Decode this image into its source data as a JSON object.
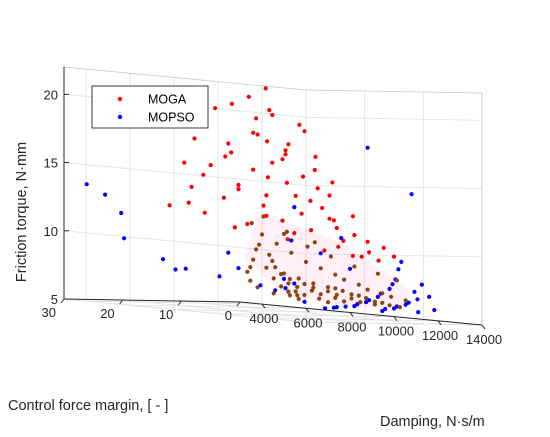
{
  "chart_data": {
    "type": "scatter",
    "projection": "3d",
    "xlabel": "Damping, N·s/m",
    "ylabel": "Control force margin, [ - ]",
    "zlabel": "Friction torque, N·mm",
    "xlim": [
      3000,
      14000
    ],
    "ylim": [
      0,
      30
    ],
    "zlim": [
      5,
      22
    ],
    "x_ticks": [
      "4000",
      "6000",
      "8000",
      "10000",
      "12000",
      "14000"
    ],
    "y_ticks": [
      "0",
      "10",
      "20",
      "30"
    ],
    "z_ticks": [
      "5",
      "10",
      "15",
      "20"
    ],
    "grid": true,
    "legend_position": "top-left",
    "overlap_color": "#8b4513",
    "series": [
      {
        "name": "MOGA",
        "color": "#ff0000",
        "points": [
          [
            9500,
            20,
            21.5
          ],
          [
            9000,
            21,
            20.8
          ],
          [
            8500,
            22,
            20.2
          ],
          [
            8000,
            23,
            19.8
          ],
          [
            9800,
            20,
            19.6
          ],
          [
            10200,
            22,
            20.0
          ],
          [
            8800,
            19,
            19.2
          ],
          [
            7500,
            24,
            19.4
          ],
          [
            10500,
            18,
            19.0
          ],
          [
            11000,
            19,
            18.6
          ],
          [
            7000,
            25,
            18.4
          ],
          [
            9200,
            21,
            18.2
          ],
          [
            8600,
            18,
            18.0
          ],
          [
            10800,
            21,
            17.6
          ],
          [
            6800,
            22,
            17.4
          ],
          [
            7800,
            20,
            17.2
          ],
          [
            9600,
            17,
            17.0
          ],
          [
            11500,
            19,
            16.8
          ],
          [
            8200,
            21,
            16.6
          ],
          [
            10000,
            19,
            16.4
          ],
          [
            7400,
            19,
            16.2
          ],
          [
            9000,
            17,
            16.0
          ],
          [
            11200,
            18,
            15.8
          ],
          [
            6600,
            23,
            15.6
          ],
          [
            8400,
            18,
            15.4
          ],
          [
            10400,
            17,
            15.2
          ],
          [
            12000,
            18,
            15.0
          ],
          [
            7200,
            22,
            14.8
          ],
          [
            9400,
            16,
            14.6
          ],
          [
            10800,
            16,
            14.4
          ],
          [
            8000,
            19,
            14.2
          ],
          [
            11600,
            17,
            14.0
          ],
          [
            6400,
            21,
            13.8
          ],
          [
            9000,
            18,
            13.6
          ],
          [
            10200,
            15,
            13.4
          ],
          [
            7600,
            20,
            13.2
          ],
          [
            11000,
            16,
            13.0
          ],
          [
            8600,
            17,
            12.8
          ],
          [
            12400,
            16,
            12.6
          ],
          [
            9800,
            15,
            12.4
          ],
          [
            10800,
            14,
            12.2
          ],
          [
            7000,
            21,
            12.0
          ],
          [
            9200,
            16,
            11.8
          ],
          [
            11400,
            15,
            11.6
          ],
          [
            8400,
            19,
            11.4
          ],
          [
            12200,
            15,
            11.2
          ],
          [
            10000,
            17,
            11.0
          ],
          [
            12800,
            15,
            10.8
          ],
          [
            13000,
            13,
            10.4
          ],
          [
            12600,
            14,
            10.0
          ],
          [
            6200,
            24,
            12.4
          ],
          [
            9600,
            20,
            15.0
          ],
          [
            10600,
            19,
            13.8
          ],
          [
            11800,
            17,
            12.2
          ],
          [
            7800,
            23,
            15.6
          ],
          [
            8800,
            22,
            14.0
          ],
          [
            10400,
            20,
            16.8
          ],
          [
            9300,
            19,
            17.6
          ],
          [
            12000,
            13,
            9.6
          ],
          [
            11200,
            14,
            10.2
          ],
          [
            6000,
            20,
            12.6
          ],
          [
            8200,
            15,
            12.0
          ],
          [
            9700,
            13,
            11.2
          ],
          [
            10900,
            12,
            10.6
          ],
          [
            7300,
            17,
            11.0
          ],
          [
            13200,
            12,
            9.8
          ],
          [
            12500,
            12,
            9.4
          ],
          [
            11600,
            13,
            9.6
          ],
          [
            10300,
            13,
            9.8
          ],
          [
            8900,
            14,
            10.4
          ]
        ]
      },
      {
        "name": "MOPSO",
        "color": "#0000ff",
        "points": [
          [
            3500,
            28,
            13.5
          ],
          [
            3800,
            26,
            12.8
          ],
          [
            4000,
            24,
            11.5
          ],
          [
            3600,
            22,
            9.6
          ],
          [
            4300,
            18,
            8.2
          ],
          [
            3800,
            14,
            7.4
          ],
          [
            4200,
            8,
            7.0
          ],
          [
            5000,
            4,
            6.5
          ],
          [
            5400,
            3,
            6.2
          ],
          [
            6000,
            2,
            6.8
          ],
          [
            14000,
            12,
            14.5
          ],
          [
            13600,
            18,
            17.8
          ],
          [
            13000,
            10,
            9.4
          ],
          [
            12600,
            9,
            8.8
          ],
          [
            12200,
            8,
            8.0
          ],
          [
            11800,
            7,
            7.6
          ],
          [
            11400,
            6,
            7.2
          ],
          [
            11000,
            6,
            6.8
          ],
          [
            10600,
            5,
            6.5
          ],
          [
            10200,
            5,
            6.2
          ],
          [
            9800,
            4,
            6.0
          ],
          [
            9400,
            4,
            5.8
          ],
          [
            9000,
            3,
            5.6
          ],
          [
            8600,
            3,
            5.5
          ],
          [
            8200,
            3,
            5.4
          ],
          [
            7800,
            2,
            5.3
          ],
          [
            7400,
            2,
            5.2
          ],
          [
            12800,
            7,
            7.2
          ],
          [
            13200,
            6,
            6.9
          ],
          [
            12400,
            5,
            6.6
          ],
          [
            12000,
            5,
            6.3
          ],
          [
            11600,
            4,
            6.1
          ],
          [
            11200,
            4,
            5.9
          ],
          [
            10800,
            3,
            5.7
          ],
          [
            10400,
            3,
            5.6
          ],
          [
            10000,
            2,
            5.4
          ],
          [
            8000,
            10,
            10.2
          ],
          [
            9200,
            14,
            12.8
          ],
          [
            10800,
            12,
            10.8
          ],
          [
            7200,
            8,
            6.6
          ],
          [
            6600,
            6,
            7.2
          ],
          [
            13400,
            8,
            7.8
          ],
          [
            12900,
            4,
            5.9
          ],
          [
            11900,
            3,
            5.6
          ],
          [
            9600,
            6,
            8.4
          ],
          [
            8800,
            8,
            9.4
          ],
          [
            5600,
            10,
            7.8
          ],
          [
            6200,
            14,
            9.0
          ],
          [
            4800,
            16,
            7.6
          ],
          [
            7000,
            4,
            5.6
          ]
        ]
      }
    ],
    "overlap_region_points": [
      [
        7000,
        10,
        9.0
      ],
      [
        7400,
        11,
        8.6
      ],
      [
        7800,
        12,
        8.2
      ],
      [
        8200,
        12,
        7.8
      ],
      [
        8600,
        11,
        7.5
      ],
      [
        9000,
        10,
        7.2
      ],
      [
        9400,
        9,
        7.0
      ],
      [
        9800,
        8,
        6.8
      ],
      [
        10200,
        8,
        6.6
      ],
      [
        10600,
        7,
        6.4
      ],
      [
        11000,
        7,
        6.2
      ],
      [
        11400,
        6,
        6.0
      ],
      [
        6600,
        9,
        8.0
      ],
      [
        7000,
        8,
        7.6
      ],
      [
        7400,
        8,
        7.3
      ],
      [
        7800,
        7,
        7.0
      ],
      [
        8200,
        7,
        6.8
      ],
      [
        8600,
        6,
        6.6
      ],
      [
        9000,
        6,
        6.4
      ],
      [
        9400,
        5,
        6.2
      ],
      [
        9800,
        5,
        6.0
      ],
      [
        10200,
        4,
        5.9
      ],
      [
        6400,
        7,
        7.2
      ],
      [
        6800,
        6,
        6.9
      ],
      [
        7200,
        6,
        6.7
      ],
      [
        7600,
        5,
        6.5
      ],
      [
        8000,
        5,
        6.3
      ],
      [
        8400,
        4,
        6.1
      ],
      [
        8800,
        4,
        5.9
      ],
      [
        6200,
        5,
        6.6
      ],
      [
        6600,
        4,
        6.3
      ],
      [
        7000,
        4,
        6.1
      ],
      [
        7400,
        3,
        5.9
      ],
      [
        7800,
        3,
        5.7
      ],
      [
        6000,
        3,
        6.2
      ],
      [
        6400,
        3,
        6.0
      ],
      [
        5800,
        2,
        5.9
      ],
      [
        6200,
        2,
        5.7
      ],
      [
        8800,
        13,
        9.4
      ],
      [
        9200,
        12,
        8.8
      ],
      [
        9600,
        11,
        8.4
      ],
      [
        10000,
        10,
        8.0
      ],
      [
        10400,
        10,
        7.7
      ],
      [
        10800,
        9,
        7.4
      ],
      [
        11200,
        9,
        7.1
      ],
      [
        11600,
        8,
        6.9
      ],
      [
        12000,
        8,
        6.7
      ],
      [
        12400,
        7,
        6.5
      ],
      [
        8400,
        14,
        10.0
      ],
      [
        8000,
        15,
        10.6
      ],
      [
        7600,
        14,
        9.8
      ],
      [
        7200,
        13,
        9.4
      ],
      [
        9000,
        15,
        10.8
      ],
      [
        9800,
        14,
        10.0
      ],
      [
        10600,
        13,
        9.4
      ],
      [
        11400,
        12,
        8.8
      ],
      [
        12200,
        11,
        8.4
      ],
      [
        12800,
        10,
        8.0
      ],
      [
        7800,
        16,
        11.4
      ],
      [
        8600,
        17,
        12.0
      ],
      [
        9400,
        16,
        11.0
      ],
      [
        10400,
        15,
        10.4
      ],
      [
        6800,
        12,
        8.6
      ],
      [
        6400,
        11,
        8.0
      ],
      [
        6000,
        10,
        7.6
      ],
      [
        5600,
        8,
        6.9
      ],
      [
        5400,
        6,
        6.4
      ],
      [
        5600,
        4,
        6.0
      ],
      [
        9200,
        7,
        6.9
      ],
      [
        10000,
        6,
        6.5
      ],
      [
        10800,
        5,
        6.1
      ],
      [
        11600,
        5,
        5.9
      ]
    ]
  },
  "legend": {
    "items": [
      {
        "label": "MOGA",
        "color": "#ff0000"
      },
      {
        "label": "MOPSO",
        "color": "#0000ff"
      }
    ]
  },
  "axes": {
    "zlabel": "Friction torque, N·mm",
    "ylabel": "Control force margin, [ - ]",
    "xlabel": "Damping, N·s/m"
  }
}
